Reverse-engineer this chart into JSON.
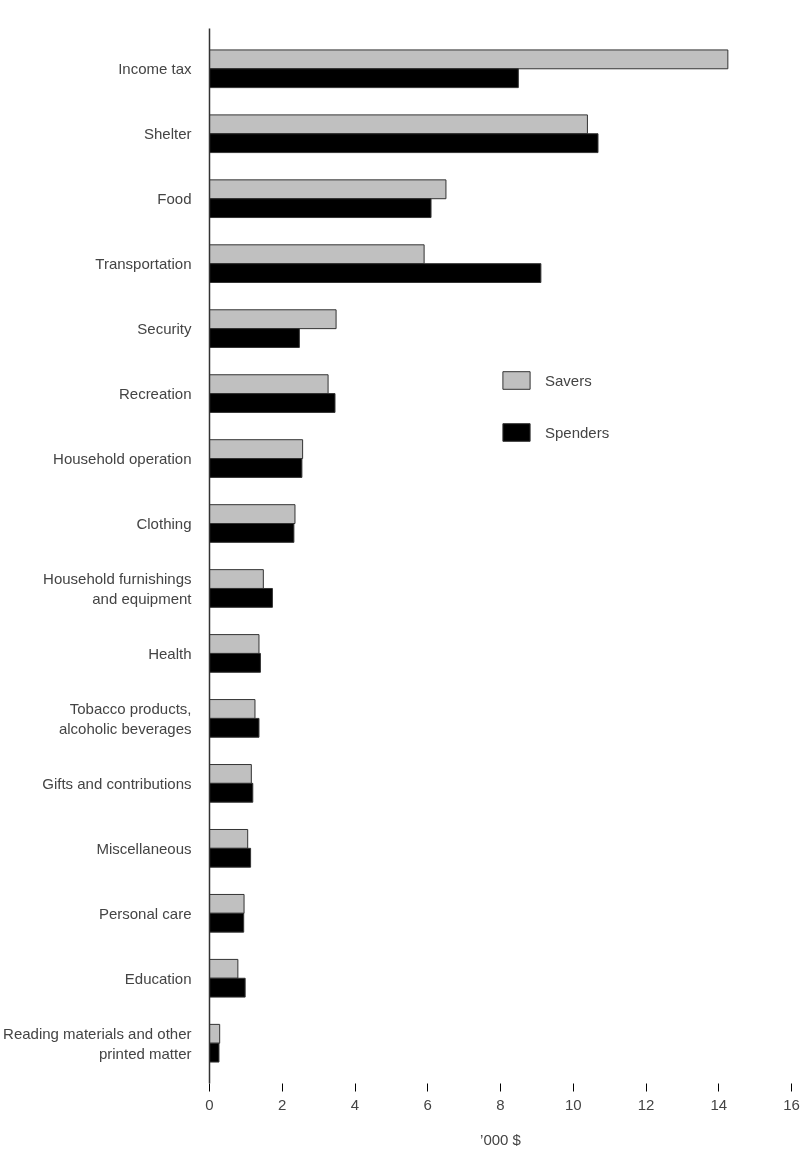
{
  "chart_data": {
    "type": "bar",
    "orientation": "horizontal",
    "xlabel": "’000 $",
    "categories": [
      "Income tax",
      "Shelter",
      "Food",
      "Transportation",
      "Security",
      "Recreation",
      "Household operation",
      "Clothing",
      "Household furnishings\nand equipment",
      "Health",
      "Tobacco products,\nalcoholic beverages",
      "Gifts and contributions",
      "Miscellaneous",
      "Personal care",
      "Education",
      "Reading materials and other\nprinted matter"
    ],
    "series": [
      {
        "name": "Savers",
        "color": "#c0c0c0",
        "values": [
          14.25,
          10.39,
          6.5,
          5.9,
          3.48,
          3.26,
          2.56,
          2.35,
          1.48,
          1.36,
          1.25,
          1.15,
          1.05,
          0.95,
          0.78,
          0.28
        ]
      },
      {
        "name": "Spenders",
        "color": "#000000",
        "values": [
          8.49,
          10.68,
          6.09,
          9.11,
          2.47,
          3.45,
          2.54,
          2.32,
          1.73,
          1.4,
          1.36,
          1.19,
          1.13,
          0.94,
          0.98,
          0.26
        ]
      }
    ],
    "xlim": [
      0,
      16
    ],
    "xticks": [
      0,
      2,
      4,
      6,
      8,
      10,
      12,
      14,
      16
    ],
    "grid": false,
    "legend": "right"
  }
}
